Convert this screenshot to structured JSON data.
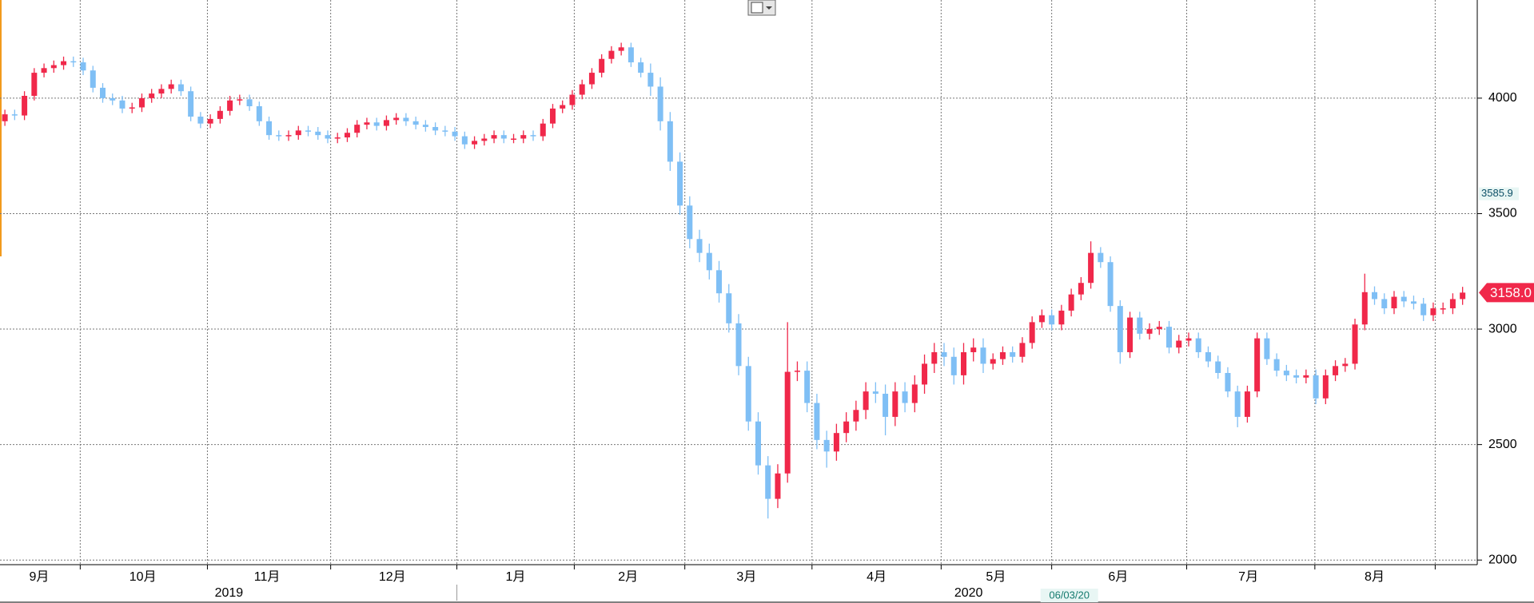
{
  "chart_data": {
    "type": "candlestick",
    "up_color": "#f0284a",
    "down_color": "#7fbff5",
    "ylim": [
      1980,
      4425
    ],
    "yticks": [
      2000,
      2500,
      3000,
      3500,
      4000
    ],
    "grid": true,
    "xticks": [
      {
        "value": 3.5,
        "label": "9月"
      },
      {
        "value": 14.1,
        "label": "10月"
      },
      {
        "value": 26.8,
        "label": "11月"
      },
      {
        "value": 39.6,
        "label": "12月"
      },
      {
        "value": 52.2,
        "label": "1月"
      },
      {
        "value": 63.7,
        "label": "2月"
      },
      {
        "value": 75.8,
        "label": "3月"
      },
      {
        "value": 89.1,
        "label": "4月"
      },
      {
        "value": 101.3,
        "label": "5月"
      },
      {
        "value": 113.8,
        "label": "6月"
      },
      {
        "value": 127.1,
        "label": "7月"
      },
      {
        "value": 140,
        "label": "8月"
      }
    ],
    "xgrid": [
      7.7,
      20.7,
      33.3,
      46.2,
      58.2,
      69.5,
      82.5,
      95.7,
      107,
      120.8,
      133.9,
      146.2
    ],
    "year_labels": [
      {
        "value": 22.9,
        "label": "2019"
      },
      {
        "value": 98.5,
        "label": "2020"
      }
    ],
    "year_break": 46.2,
    "cursor_date": {
      "value": 108.8,
      "label": "06/03/20"
    },
    "price_marker": 3585.9,
    "last_price": {
      "value": 3158,
      "label": "3158.0"
    },
    "open": [
      3900,
      3930,
      3925,
      4010,
      4110,
      4130,
      4143,
      4160,
      4155,
      4120,
      4045,
      4000,
      3990,
      3955,
      3960,
      4000,
      4020,
      4040,
      4060,
      4030,
      3920,
      3890,
      3910,
      3945,
      3990,
      3995,
      3965,
      3900,
      3840,
      3835,
      3840,
      3860,
      3855,
      3840,
      3825,
      3830,
      3850,
      3885,
      3895,
      3880,
      3905,
      3915,
      3900,
      3885,
      3875,
      3860,
      3855,
      3835,
      3800,
      3815,
      3825,
      3840,
      3825,
      3825,
      3840,
      3835,
      3890,
      3955,
      3970,
      4015,
      4060,
      4110,
      4170,
      4205,
      4220,
      4155,
      4110,
      4050,
      3900,
      3725,
      3535,
      3390,
      3330,
      3255,
      3155,
      3025,
      2840,
      2600,
      2410,
      2265,
      2375,
      2815,
      2820,
      2680,
      2520,
      2470,
      2550,
      2600,
      2650,
      2730,
      2720,
      2620,
      2730,
      2680,
      2760,
      2850,
      2900,
      2880,
      2800,
      2900,
      2920,
      2850,
      2870,
      2900,
      2880,
      2940,
      3030,
      3060,
      3020,
      3080,
      3150,
      3200,
      3330,
      3290,
      3100,
      2900,
      3050,
      2980,
      3000,
      3010,
      2920,
      2950,
      2960,
      2900,
      2860,
      2810,
      2730,
      2620,
      2730,
      2960,
      2870,
      2820,
      2800,
      2790,
      2800,
      2700,
      2800,
      2840,
      2850,
      3020,
      3160,
      3130,
      3090,
      3140,
      3120,
      3110,
      3060,
      3090,
      3090,
      3130
    ],
    "high": [
      3950,
      3950,
      4030,
      4130,
      4150,
      4163,
      4180,
      4180,
      4175,
      4140,
      4065,
      4020,
      4010,
      3980,
      4020,
      4040,
      4060,
      4080,
      4080,
      4050,
      3940,
      3930,
      3965,
      4010,
      4015,
      4015,
      3985,
      3920,
      3860,
      3860,
      3880,
      3880,
      3875,
      3860,
      3850,
      3870,
      3905,
      3915,
      3915,
      3925,
      3935,
      3935,
      3920,
      3905,
      3895,
      3880,
      3875,
      3855,
      3835,
      3845,
      3860,
      3860,
      3845,
      3860,
      3860,
      3910,
      3975,
      3990,
      4035,
      4080,
      4130,
      4190,
      4225,
      4240,
      4240,
      4175,
      4150,
      4090,
      3940,
      3765,
      3575,
      3430,
      3370,
      3295,
      3195,
      3065,
      2880,
      2640,
      2450,
      2415,
      3030,
      2860,
      2860,
      2720,
      2560,
      2590,
      2640,
      2690,
      2770,
      2770,
      2760,
      2770,
      2770,
      2800,
      2890,
      2940,
      2940,
      2920,
      2940,
      2960,
      2960,
      2895,
      2925,
      2925,
      2965,
      3055,
      3085,
      3085,
      3105,
      3175,
      3225,
      3380,
      3355,
      3315,
      3125,
      3075,
      3075,
      3025,
      3035,
      3035,
      2975,
      2985,
      2985,
      2925,
      2885,
      2835,
      2755,
      2755,
      2985,
      2985,
      2895,
      2845,
      2825,
      2825,
      2825,
      2825,
      2865,
      2875,
      3045,
      3240,
      3185,
      3155,
      3165,
      3165,
      3145,
      3135,
      3115,
      3115,
      3155,
      3183
    ],
    "low": [
      3880,
      3905,
      3905,
      3990,
      4090,
      4110,
      4123,
      4135,
      4100,
      4025,
      3980,
      3970,
      3935,
      3935,
      3940,
      3980,
      4000,
      4020,
      4010,
      3900,
      3870,
      3870,
      3890,
      3925,
      3970,
      3945,
      3880,
      3820,
      3815,
      3815,
      3820,
      3835,
      3820,
      3805,
      3805,
      3810,
      3830,
      3865,
      3860,
      3860,
      3885,
      3880,
      3865,
      3855,
      3840,
      3835,
      3815,
      3780,
      3780,
      3795,
      3805,
      3805,
      3805,
      3805,
      3815,
      3815,
      3870,
      3935,
      3950,
      3995,
      4040,
      4090,
      4150,
      4185,
      4135,
      4090,
      4010,
      3860,
      3685,
      3495,
      3350,
      3290,
      3215,
      3115,
      2985,
      2800,
      2560,
      2370,
      2180,
      2225,
      2335,
      2775,
      2640,
      2480,
      2400,
      2430,
      2510,
      2560,
      2610,
      2680,
      2540,
      2580,
      2640,
      2640,
      2720,
      2810,
      2840,
      2760,
      2760,
      2860,
      2810,
      2825,
      2845,
      2855,
      2855,
      2915,
      3005,
      2995,
      2995,
      3055,
      3125,
      3175,
      3265,
      3075,
      2850,
      2875,
      2955,
      2955,
      2975,
      2895,
      2895,
      2925,
      2875,
      2835,
      2785,
      2705,
      2575,
      2595,
      2705,
      2845,
      2795,
      2775,
      2765,
      2765,
      2675,
      2675,
      2775,
      2815,
      2825,
      2995,
      3105,
      3065,
      3065,
      3095,
      3085,
      3035,
      3035,
      3065,
      3065,
      3105
    ],
    "close": [
      3930,
      3925,
      4010,
      4110,
      4130,
      4143,
      4160,
      4155,
      4120,
      4045,
      4000,
      3990,
      3955,
      3960,
      4000,
      4020,
      4040,
      4060,
      4030,
      3920,
      3890,
      3910,
      3945,
      3990,
      3995,
      3965,
      3900,
      3840,
      3835,
      3840,
      3860,
      3855,
      3840,
      3825,
      3830,
      3850,
      3885,
      3895,
      3880,
      3905,
      3915,
      3900,
      3885,
      3875,
      3860,
      3855,
      3835,
      3800,
      3815,
      3825,
      3840,
      3825,
      3825,
      3840,
      3835,
      3890,
      3955,
      3970,
      4015,
      4060,
      4110,
      4170,
      4205,
      4220,
      4155,
      4110,
      4050,
      3900,
      3725,
      3535,
      3390,
      3330,
      3255,
      3155,
      3025,
      2840,
      2600,
      2410,
      2265,
      2375,
      2815,
      2820,
      2680,
      2520,
      2470,
      2550,
      2600,
      2650,
      2730,
      2720,
      2620,
      2730,
      2680,
      2760,
      2850,
      2900,
      2880,
      2800,
      2900,
      2920,
      2850,
      2870,
      2900,
      2880,
      2940,
      3030,
      3060,
      3020,
      3080,
      3150,
      3200,
      3330,
      3290,
      3100,
      2900,
      3050,
      2980,
      3000,
      3010,
      2920,
      2950,
      2960,
      2900,
      2860,
      2810,
      2730,
      2620,
      2730,
      2960,
      2870,
      2820,
      2800,
      2790,
      2800,
      2700,
      2800,
      2840,
      2850,
      3020,
      3160,
      3130,
      3090,
      3140,
      3120,
      3110,
      3060,
      3090,
      3090,
      3130,
      3158
    ]
  }
}
